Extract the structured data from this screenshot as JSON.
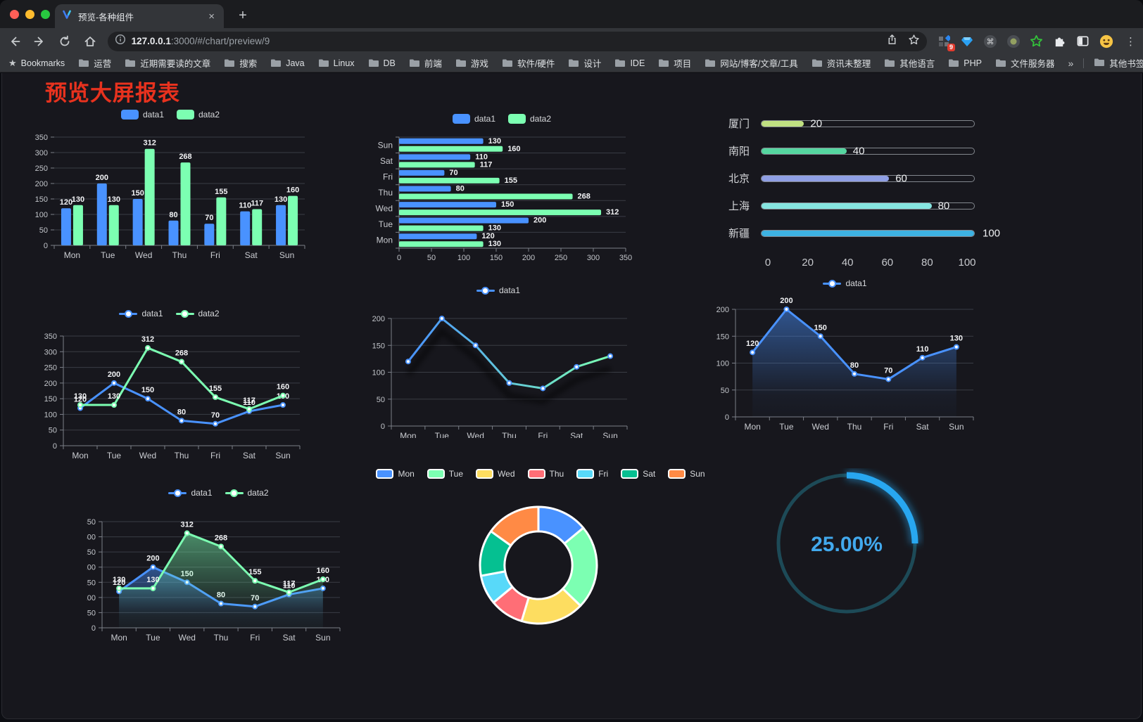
{
  "browser": {
    "tab_title": "预览-各种组件",
    "close_tab_label": "×",
    "new_tab_label": "+",
    "url_host": "127.0.0.1",
    "url_rest": ":3000/#/chart/preview/9",
    "extension_badge": "9",
    "bookmarks_label": "Bookmarks",
    "bookmark_folders": [
      "运营",
      "近期需要读的文章",
      "搜索",
      "Java",
      "Linux",
      "DB",
      "前端",
      "游戏",
      "软件/硬件",
      "设计",
      "IDE",
      "项目",
      "网站/博客/文章/工具",
      "资讯未整理",
      "其他语言",
      "PHP",
      "文件服务器"
    ],
    "bookmarks_overflow": "»",
    "other_bookmarks": "其他书签"
  },
  "page": {
    "title": "预览大屏报表",
    "title_color": "#e8321e"
  },
  "chart_data": [
    {
      "id": "bar-vertical",
      "type": "bar",
      "legend": "top",
      "legend_icon": "rect",
      "categories": [
        "Mon",
        "Tue",
        "Wed",
        "Thu",
        "Fri",
        "Sat",
        "Sun"
      ],
      "series": [
        {
          "name": "data1",
          "color": "#4992ff",
          "values": [
            120,
            200,
            150,
            80,
            70,
            110,
            130
          ]
        },
        {
          "name": "data2",
          "color": "#7cffb2",
          "values": [
            130,
            130,
            312,
            268,
            155,
            117,
            160
          ]
        }
      ],
      "ylim": [
        0,
        350
      ],
      "ystep": 50,
      "labels": true,
      "grid": true
    },
    {
      "id": "bar-horizontal",
      "type": "hbar",
      "legend": "top",
      "legend_icon": "rect",
      "categories": [
        "Mon",
        "Tue",
        "Wed",
        "Thu",
        "Fri",
        "Sat",
        "Sun"
      ],
      "series": [
        {
          "name": "data1",
          "color": "#4992ff",
          "values": [
            120,
            200,
            150,
            80,
            70,
            110,
            130
          ]
        },
        {
          "name": "data2",
          "color": "#7cffb2",
          "values": [
            130,
            130,
            312,
            268,
            155,
            117,
            160
          ]
        }
      ],
      "xlim": [
        0,
        350
      ],
      "xstep": 50,
      "labels": true,
      "grid": true
    },
    {
      "id": "progress-bars",
      "type": "progress",
      "xlim": [
        0,
        100
      ],
      "xticks": [
        0,
        20,
        40,
        60,
        80,
        100
      ],
      "items": [
        {
          "label": "厦门",
          "value": 20,
          "color": "#c0e081"
        },
        {
          "label": "南阳",
          "value": 40,
          "color": "#55d6a0"
        },
        {
          "label": "北京",
          "value": 60,
          "color": "#8f9fe4"
        },
        {
          "label": "上海",
          "value": 80,
          "color": "#86e5e0"
        },
        {
          "label": "新疆",
          "value": 100,
          "color": "#3db2e2"
        }
      ]
    },
    {
      "id": "line-dual",
      "type": "line",
      "legend": "top",
      "legend_icon": "line",
      "categories": [
        "Mon",
        "Tue",
        "Wed",
        "Thu",
        "Fri",
        "Sat",
        "Sun"
      ],
      "series": [
        {
          "name": "data1",
          "color": "#4992ff",
          "values": [
            120,
            200,
            150,
            80,
            70,
            110,
            130
          ]
        },
        {
          "name": "data2",
          "color": "#7cffb2",
          "values": [
            130,
            130,
            312,
            268,
            155,
            117,
            160
          ]
        }
      ],
      "ylim": [
        0,
        350
      ],
      "ystep": 50,
      "labels": true,
      "grid": true
    },
    {
      "id": "line-gradient",
      "type": "line",
      "legend": "top",
      "legend_icon": "line",
      "categories": [
        "Mon",
        "Tue",
        "Wed",
        "Thu",
        "Fri",
        "Sat",
        "Sun"
      ],
      "series": [
        {
          "name": "data1",
          "color": "#4992ff",
          "gradient": [
            "#4992ff",
            "#7cffb2"
          ],
          "values": [
            120,
            200,
            150,
            80,
            70,
            110,
            130
          ]
        }
      ],
      "ylim": [
        0,
        200
      ],
      "ystep": 50,
      "labels": false,
      "shadow": true,
      "grid": true
    },
    {
      "id": "area-single",
      "type": "area",
      "legend": "top",
      "legend_icon": "line",
      "categories": [
        "Mon",
        "Tue",
        "Wed",
        "Thu",
        "Fri",
        "Sat",
        "Sun"
      ],
      "series": [
        {
          "name": "data1",
          "color": "#4992ff",
          "values": [
            120,
            200,
            150,
            80,
            70,
            110,
            130
          ]
        }
      ],
      "ylim": [
        0,
        200
      ],
      "ystep": 50,
      "labels": true,
      "grid": true
    },
    {
      "id": "area-dual",
      "type": "area",
      "legend": "top",
      "legend_icon": "line",
      "categories": [
        "Mon",
        "Tue",
        "Wed",
        "Thu",
        "Fri",
        "Sat",
        "Sun"
      ],
      "series": [
        {
          "name": "data1",
          "color": "#4992ff",
          "values": [
            120,
            200,
            150,
            80,
            70,
            110,
            130
          ]
        },
        {
          "name": "data2",
          "color": "#7cffb2",
          "values": [
            130,
            130,
            312,
            268,
            155,
            117,
            160
          ]
        }
      ],
      "ylim": [
        0,
        350
      ],
      "ystep": 50,
      "labels": true,
      "grid": true
    },
    {
      "id": "donut",
      "type": "pie",
      "legend": "top",
      "legend_icon": "roundRect",
      "inner_radius_ratio": 0.58,
      "start_angle": -90,
      "clockwise": true,
      "items": [
        {
          "label": "Mon",
          "value": 120,
          "color": "#4992ff"
        },
        {
          "label": "Tue",
          "value": 200,
          "color": "#7cffb2"
        },
        {
          "label": "Wed",
          "value": 150,
          "color": "#fddd60"
        },
        {
          "label": "Thu",
          "value": 80,
          "color": "#ff6e76"
        },
        {
          "label": "Fri",
          "value": 70,
          "color": "#58d9f9"
        },
        {
          "label": "Sat",
          "value": 110,
          "color": "#05c091"
        },
        {
          "label": "Sun",
          "value": 130,
          "color": "#ff8a45"
        }
      ]
    },
    {
      "id": "gauge",
      "type": "gauge",
      "value": 25,
      "display": "25.00%",
      "color": "#28a7f0",
      "track_color": "#1d4a57",
      "text_color": "#42a9ed"
    }
  ]
}
